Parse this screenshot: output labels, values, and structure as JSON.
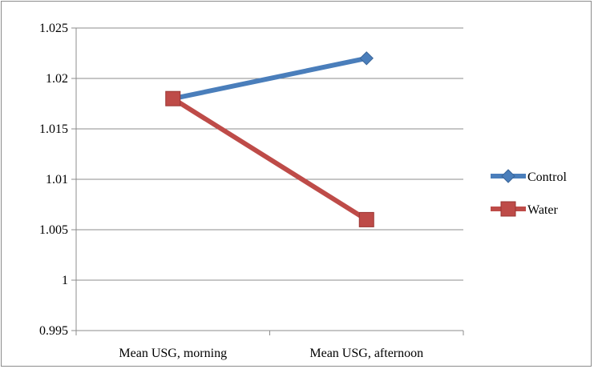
{
  "chart_data": {
    "type": "line",
    "categories": [
      "Mean USG, morning",
      "Mean USG, afternoon"
    ],
    "series": [
      {
        "name": "Control",
        "values": [
          1.018,
          1.022
        ],
        "color": "#4a7ebb",
        "marker": "diamond"
      },
      {
        "name": "Water",
        "values": [
          1.018,
          1.006
        ],
        "color": "#be4b48",
        "marker": "square"
      }
    ],
    "yticks": [
      "1.025",
      "1.02",
      "1.015",
      "1.01",
      "1.005",
      "1",
      "0.995"
    ],
    "ylim": [
      0.995,
      1.025
    ],
    "grid": true,
    "legend_position": "right"
  }
}
